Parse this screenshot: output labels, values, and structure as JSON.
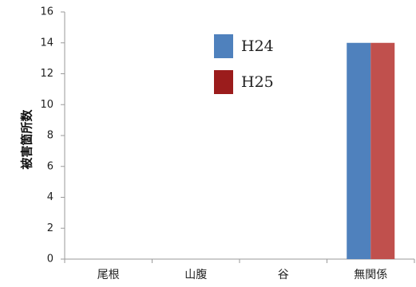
{
  "chart_data": {
    "type": "bar",
    "title": "",
    "xlabel": "",
    "ylabel": "被害箇所数",
    "categories": [
      "尾根",
      "山腹",
      "谷",
      "無関係"
    ],
    "series": [
      {
        "name": "H24",
        "color": "#4f81bd",
        "values": [
          0,
          0,
          0,
          14
        ]
      },
      {
        "name": "H25",
        "color": "#c0504d",
        "legend_color": "#9b1c1c",
        "values": [
          0,
          0,
          0,
          14
        ]
      }
    ],
    "ylim": [
      0,
      16
    ],
    "yticks": [
      0,
      2,
      4,
      6,
      8,
      10,
      12,
      14,
      16
    ],
    "grid": false,
    "legend_position": "top-center"
  }
}
